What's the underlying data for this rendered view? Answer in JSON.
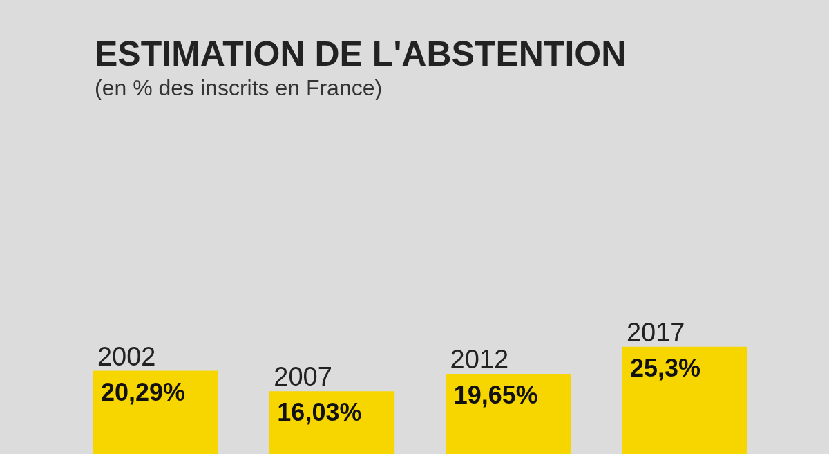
{
  "chart_data": {
    "type": "bar",
    "title": "ESTIMATION DE L'ABSTENTION",
    "subtitle": "(en % des inscrits en France)",
    "categories": [
      "2002",
      "2007",
      "2012",
      "2017"
    ],
    "values": [
      20.29,
      16.03,
      19.65,
      25.3
    ],
    "value_labels": [
      "20,29%",
      "16,03%",
      "19,65%",
      "25,3%"
    ],
    "color": "#f7d600",
    "ylim": [
      0,
      36
    ],
    "grid": false
  }
}
